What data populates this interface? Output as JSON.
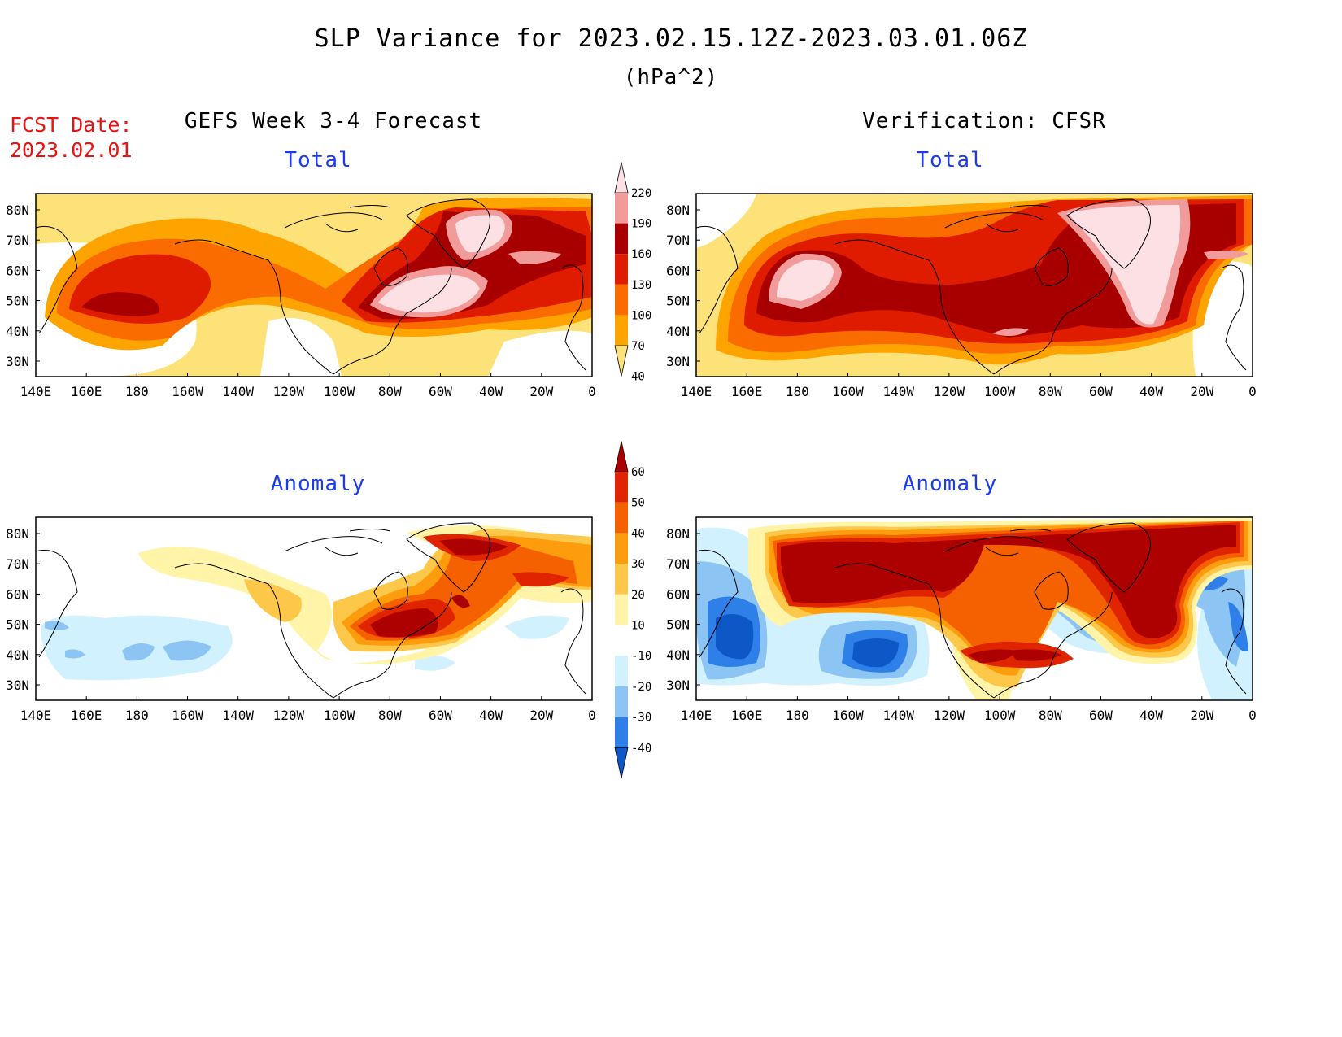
{
  "header": {
    "title": "SLP Variance for 2023.02.15.12Z-2023.03.01.06Z",
    "units": "(hPa^2)",
    "fcst_label": "FCST Date:",
    "fcst_date": "2023.02.01",
    "left_column": "GEFS Week 3-4 Forecast",
    "right_column": "Verification: CFSR"
  },
  "panels": {
    "gefs_total": {
      "title": "Total"
    },
    "cfsr_total": {
      "title": "Total"
    },
    "gefs_anomaly": {
      "title": "Anomaly"
    },
    "cfsr_anomaly": {
      "title": "Anomaly"
    }
  },
  "axes": {
    "lon_ticks": [
      "140E",
      "160E",
      "180",
      "160W",
      "140W",
      "120W",
      "100W",
      "80W",
      "60W",
      "40W",
      "20W",
      "0"
    ],
    "lat_ticks": [
      "30N",
      "40N",
      "50N",
      "60N",
      "70N",
      "80N"
    ]
  },
  "colorbars": {
    "total": {
      "levels": [
        "40",
        "70",
        "100",
        "130",
        "160",
        "190",
        "220"
      ],
      "colors": [
        "#fde27a",
        "#fea400",
        "#fb6c00",
        "#e01c00",
        "#a80000",
        "#f29b9b",
        "#fde0e4"
      ]
    },
    "anomaly": {
      "levels": [
        "-40",
        "-30",
        "-20",
        "-10",
        "10",
        "20",
        "30",
        "40",
        "50",
        "60"
      ],
      "colors": [
        "#0d57c7",
        "#2e80e8",
        "#8cc4f4",
        "#d2f1ff",
        "#ffffff",
        "#fff4a8",
        "#fdc74a",
        "#fd9c0d",
        "#f56100",
        "#e02400",
        "#ad0000"
      ]
    }
  }
}
